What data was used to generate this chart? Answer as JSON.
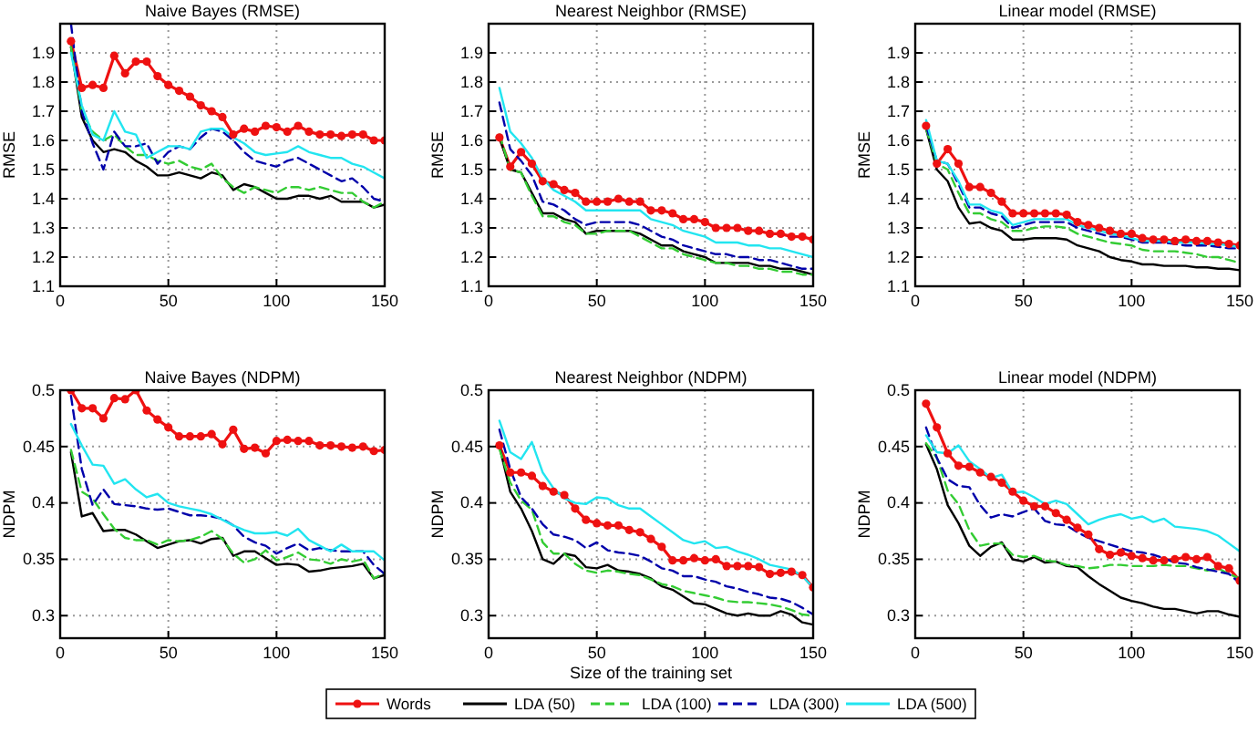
{
  "chart_data": [
    {
      "type": "line",
      "title": "Naive Bayes (RMSE)",
      "ylabel": "RMSE",
      "x": [
        5,
        10,
        15,
        20,
        25,
        30,
        35,
        40,
        45,
        50,
        55,
        60,
        65,
        70,
        75,
        80,
        85,
        90,
        95,
        100,
        105,
        110,
        115,
        120,
        125,
        130,
        135,
        140,
        145,
        150
      ],
      "xlim": [
        0,
        150
      ],
      "xticks": [
        0,
        50,
        100,
        150
      ],
      "ylim": [
        1.1,
        2.0
      ],
      "yticks": [
        1.1,
        1.2,
        1.3,
        1.4,
        1.5,
        1.6,
        1.7,
        1.8,
        1.9
      ],
      "grid": true,
      "series": [
        {
          "color": "#ee1111",
          "line_style": "solid",
          "marker": "circle",
          "values": [
            1.94,
            1.78,
            1.79,
            1.78,
            1.89,
            1.83,
            1.87,
            1.87,
            1.82,
            1.79,
            1.77,
            1.75,
            1.72,
            1.7,
            1.68,
            1.62,
            1.64,
            1.63,
            1.65,
            1.645,
            1.63,
            1.65,
            1.63,
            1.62,
            1.62,
            1.615,
            1.62,
            1.62,
            1.6,
            1.6
          ]
        },
        {
          "color": "#000000",
          "line_style": "solid",
          "marker": "none",
          "values": [
            1.92,
            1.68,
            1.6,
            1.56,
            1.57,
            1.56,
            1.53,
            1.51,
            1.48,
            1.48,
            1.49,
            1.48,
            1.47,
            1.49,
            1.48,
            1.43,
            1.45,
            1.44,
            1.42,
            1.4,
            1.4,
            1.41,
            1.41,
            1.4,
            1.41,
            1.39,
            1.39,
            1.39,
            1.37,
            1.38
          ]
        },
        {
          "color": "#33cc33",
          "line_style": "dashed",
          "marker": "none",
          "values": [
            1.92,
            1.7,
            1.63,
            1.6,
            1.62,
            1.58,
            1.55,
            1.55,
            1.53,
            1.52,
            1.53,
            1.51,
            1.5,
            1.52,
            1.47,
            1.44,
            1.42,
            1.44,
            1.43,
            1.42,
            1.44,
            1.44,
            1.43,
            1.44,
            1.43,
            1.42,
            1.42,
            1.39,
            1.37,
            1.39
          ]
        },
        {
          "color": "#0000aa",
          "line_style": "dashed",
          "marker": "none",
          "values": [
            2.0,
            1.7,
            1.59,
            1.5,
            1.63,
            1.58,
            1.58,
            1.59,
            1.52,
            1.56,
            1.58,
            1.57,
            1.61,
            1.64,
            1.63,
            1.6,
            1.56,
            1.53,
            1.52,
            1.51,
            1.53,
            1.54,
            1.52,
            1.5,
            1.48,
            1.46,
            1.47,
            1.44,
            1.4,
            1.39
          ]
        },
        {
          "color": "#22e5f0",
          "line_style": "solid",
          "marker": "none",
          "values": [
            1.9,
            1.72,
            1.62,
            1.6,
            1.7,
            1.63,
            1.62,
            1.54,
            1.56,
            1.58,
            1.58,
            1.57,
            1.63,
            1.64,
            1.64,
            1.61,
            1.59,
            1.56,
            1.55,
            1.555,
            1.56,
            1.58,
            1.56,
            1.55,
            1.54,
            1.54,
            1.52,
            1.51,
            1.49,
            1.47
          ]
        }
      ]
    },
    {
      "type": "line",
      "title": "Nearest Neighbor (RMSE)",
      "ylabel": "RMSE",
      "x": [
        5,
        10,
        15,
        20,
        25,
        30,
        35,
        40,
        45,
        50,
        55,
        60,
        65,
        70,
        75,
        80,
        85,
        90,
        95,
        100,
        105,
        110,
        115,
        120,
        125,
        130,
        135,
        140,
        145,
        150
      ],
      "xlim": [
        0,
        150
      ],
      "xticks": [
        0,
        50,
        100,
        150
      ],
      "ylim": [
        1.1,
        2.0
      ],
      "yticks": [
        1.1,
        1.2,
        1.3,
        1.4,
        1.5,
        1.6,
        1.7,
        1.8,
        1.9
      ],
      "grid": true,
      "series": [
        {
          "color": "#ee1111",
          "line_style": "solid",
          "marker": "circle",
          "values": [
            1.61,
            1.51,
            1.56,
            1.52,
            1.46,
            1.45,
            1.43,
            1.42,
            1.39,
            1.39,
            1.39,
            1.4,
            1.39,
            1.39,
            1.36,
            1.36,
            1.35,
            1.33,
            1.33,
            1.32,
            1.3,
            1.3,
            1.3,
            1.29,
            1.29,
            1.28,
            1.28,
            1.27,
            1.27,
            1.26
          ]
        },
        {
          "color": "#000000",
          "line_style": "solid",
          "marker": "none",
          "values": [
            1.61,
            1.5,
            1.49,
            1.42,
            1.35,
            1.35,
            1.33,
            1.32,
            1.28,
            1.29,
            1.29,
            1.29,
            1.29,
            1.28,
            1.26,
            1.24,
            1.24,
            1.22,
            1.21,
            1.2,
            1.18,
            1.18,
            1.18,
            1.18,
            1.17,
            1.17,
            1.16,
            1.16,
            1.15,
            1.14
          ]
        },
        {
          "color": "#33cc33",
          "line_style": "dashed",
          "marker": "none",
          "values": [
            1.62,
            1.5,
            1.49,
            1.41,
            1.34,
            1.34,
            1.32,
            1.31,
            1.28,
            1.28,
            1.29,
            1.29,
            1.29,
            1.27,
            1.25,
            1.23,
            1.23,
            1.21,
            1.2,
            1.19,
            1.18,
            1.18,
            1.17,
            1.17,
            1.16,
            1.16,
            1.15,
            1.15,
            1.14,
            1.14
          ]
        },
        {
          "color": "#0000aa",
          "line_style": "dashed",
          "marker": "none",
          "values": [
            1.73,
            1.57,
            1.53,
            1.48,
            1.39,
            1.38,
            1.36,
            1.33,
            1.31,
            1.32,
            1.32,
            1.32,
            1.32,
            1.31,
            1.29,
            1.27,
            1.26,
            1.24,
            1.23,
            1.22,
            1.21,
            1.21,
            1.2,
            1.2,
            1.19,
            1.19,
            1.18,
            1.17,
            1.16,
            1.16
          ]
        },
        {
          "color": "#22e5f0",
          "line_style": "solid",
          "marker": "none",
          "values": [
            1.78,
            1.63,
            1.59,
            1.54,
            1.47,
            1.43,
            1.41,
            1.39,
            1.36,
            1.36,
            1.36,
            1.36,
            1.36,
            1.36,
            1.33,
            1.32,
            1.31,
            1.29,
            1.28,
            1.27,
            1.25,
            1.25,
            1.25,
            1.24,
            1.24,
            1.23,
            1.23,
            1.22,
            1.21,
            1.2
          ]
        }
      ]
    },
    {
      "type": "line",
      "title": "Linear model (RMSE)",
      "ylabel": "RMSE",
      "x": [
        5,
        10,
        15,
        20,
        25,
        30,
        35,
        40,
        45,
        50,
        55,
        60,
        65,
        70,
        75,
        80,
        85,
        90,
        95,
        100,
        105,
        110,
        115,
        120,
        125,
        130,
        135,
        140,
        145,
        150
      ],
      "xlim": [
        0,
        150
      ],
      "xticks": [
        0,
        50,
        100,
        150
      ],
      "ylim": [
        1.1,
        2.0
      ],
      "yticks": [
        1.1,
        1.2,
        1.3,
        1.4,
        1.5,
        1.6,
        1.7,
        1.8,
        1.9
      ],
      "grid": true,
      "series": [
        {
          "color": "#ee1111",
          "line_style": "solid",
          "marker": "circle",
          "values": [
            1.65,
            1.52,
            1.57,
            1.52,
            1.44,
            1.44,
            1.42,
            1.39,
            1.35,
            1.35,
            1.35,
            1.35,
            1.35,
            1.345,
            1.32,
            1.31,
            1.3,
            1.29,
            1.28,
            1.28,
            1.265,
            1.26,
            1.26,
            1.255,
            1.26,
            1.255,
            1.255,
            1.25,
            1.245,
            1.24
          ]
        },
        {
          "color": "#000000",
          "line_style": "solid",
          "marker": "none",
          "values": [
            1.64,
            1.5,
            1.46,
            1.37,
            1.315,
            1.32,
            1.3,
            1.29,
            1.26,
            1.26,
            1.265,
            1.265,
            1.265,
            1.26,
            1.24,
            1.23,
            1.22,
            1.2,
            1.19,
            1.185,
            1.175,
            1.175,
            1.17,
            1.17,
            1.17,
            1.165,
            1.165,
            1.16,
            1.16,
            1.155
          ]
        },
        {
          "color": "#33cc33",
          "line_style": "dashed",
          "marker": "none",
          "values": [
            1.64,
            1.52,
            1.5,
            1.42,
            1.35,
            1.35,
            1.33,
            1.32,
            1.29,
            1.29,
            1.3,
            1.305,
            1.305,
            1.3,
            1.28,
            1.27,
            1.26,
            1.25,
            1.245,
            1.24,
            1.225,
            1.22,
            1.22,
            1.22,
            1.215,
            1.21,
            1.2,
            1.2,
            1.19,
            1.18
          ]
        },
        {
          "color": "#0000aa",
          "line_style": "dashed",
          "marker": "none",
          "values": [
            1.65,
            1.53,
            1.52,
            1.45,
            1.37,
            1.37,
            1.35,
            1.34,
            1.3,
            1.31,
            1.32,
            1.32,
            1.32,
            1.32,
            1.3,
            1.29,
            1.28,
            1.27,
            1.27,
            1.26,
            1.25,
            1.25,
            1.25,
            1.245,
            1.24,
            1.24,
            1.24,
            1.235,
            1.23,
            1.23
          ]
        },
        {
          "color": "#22e5f0",
          "line_style": "solid",
          "marker": "none",
          "values": [
            1.67,
            1.53,
            1.52,
            1.46,
            1.38,
            1.38,
            1.36,
            1.35,
            1.31,
            1.32,
            1.33,
            1.33,
            1.33,
            1.33,
            1.31,
            1.3,
            1.29,
            1.28,
            1.275,
            1.265,
            1.255,
            1.255,
            1.255,
            1.25,
            1.25,
            1.25,
            1.245,
            1.245,
            1.24,
            1.235
          ]
        }
      ]
    },
    {
      "type": "line",
      "title": "Naive Bayes (NDPM)",
      "ylabel": "NDPM",
      "x": [
        5,
        10,
        15,
        20,
        25,
        30,
        35,
        40,
        45,
        50,
        55,
        60,
        65,
        70,
        75,
        80,
        85,
        90,
        95,
        100,
        105,
        110,
        115,
        120,
        125,
        130,
        135,
        140,
        145,
        150
      ],
      "xlim": [
        0,
        150
      ],
      "xticks": [
        0,
        50,
        100,
        150
      ],
      "ylim": [
        0.28,
        0.5
      ],
      "yticks": [
        0.3,
        0.35,
        0.4,
        0.45,
        0.5
      ],
      "grid": true,
      "series": [
        {
          "color": "#ee1111",
          "line_style": "solid",
          "marker": "circle",
          "values": [
            0.5,
            0.484,
            0.484,
            0.475,
            0.493,
            0.492,
            0.5,
            0.482,
            0.474,
            0.467,
            0.459,
            0.459,
            0.459,
            0.461,
            0.452,
            0.465,
            0.448,
            0.449,
            0.444,
            0.455,
            0.456,
            0.455,
            0.455,
            0.451,
            0.451,
            0.45,
            0.449,
            0.45,
            0.446,
            0.447
          ]
        },
        {
          "color": "#000000",
          "line_style": "solid",
          "marker": "none",
          "values": [
            0.445,
            0.388,
            0.391,
            0.375,
            0.376,
            0.376,
            0.372,
            0.366,
            0.36,
            0.363,
            0.366,
            0.367,
            0.364,
            0.368,
            0.369,
            0.353,
            0.357,
            0.357,
            0.351,
            0.345,
            0.346,
            0.345,
            0.339,
            0.34,
            0.342,
            0.343,
            0.344,
            0.346,
            0.333,
            0.336
          ]
        },
        {
          "color": "#33cc33",
          "line_style": "dashed",
          "marker": "none",
          "values": [
            0.447,
            0.41,
            0.404,
            0.39,
            0.377,
            0.369,
            0.367,
            0.367,
            0.363,
            0.367,
            0.366,
            0.367,
            0.37,
            0.375,
            0.368,
            0.355,
            0.347,
            0.35,
            0.358,
            0.349,
            0.352,
            0.356,
            0.35,
            0.349,
            0.346,
            0.35,
            0.348,
            0.35,
            0.333,
            0.338
          ]
        },
        {
          "color": "#0000aa",
          "line_style": "dashed",
          "marker": "none",
          "values": [
            0.495,
            0.43,
            0.398,
            0.412,
            0.399,
            0.398,
            0.397,
            0.395,
            0.394,
            0.395,
            0.392,
            0.389,
            0.389,
            0.388,
            0.386,
            0.38,
            0.37,
            0.365,
            0.362,
            0.355,
            0.36,
            0.364,
            0.358,
            0.36,
            0.358,
            0.357,
            0.357,
            0.357,
            0.345,
            0.337
          ]
        },
        {
          "color": "#22e5f0",
          "line_style": "solid",
          "marker": "none",
          "values": [
            0.47,
            0.451,
            0.434,
            0.433,
            0.417,
            0.421,
            0.412,
            0.405,
            0.408,
            0.4,
            0.397,
            0.395,
            0.393,
            0.39,
            0.385,
            0.38,
            0.376,
            0.373,
            0.373,
            0.374,
            0.371,
            0.377,
            0.367,
            0.362,
            0.357,
            0.363,
            0.357,
            0.357,
            0.357,
            0.349
          ]
        }
      ]
    },
    {
      "type": "line",
      "title": "Nearest Neighbor (NDPM)",
      "ylabel": "NDPM",
      "xlabel": "Size of the training set",
      "legend": "bottom",
      "x": [
        5,
        10,
        15,
        20,
        25,
        30,
        35,
        40,
        45,
        50,
        55,
        60,
        65,
        70,
        75,
        80,
        85,
        90,
        95,
        100,
        105,
        110,
        115,
        120,
        125,
        130,
        135,
        140,
        145,
        150
      ],
      "xlim": [
        0,
        150
      ],
      "xticks": [
        0,
        50,
        100,
        150
      ],
      "ylim": [
        0.28,
        0.5
      ],
      "yticks": [
        0.3,
        0.35,
        0.4,
        0.45,
        0.5
      ],
      "grid": true,
      "series": [
        {
          "name": "Words",
          "color": "#ee1111",
          "line_style": "solid",
          "marker": "circle",
          "values": [
            0.451,
            0.427,
            0.427,
            0.424,
            0.415,
            0.41,
            0.407,
            0.395,
            0.385,
            0.382,
            0.38,
            0.38,
            0.376,
            0.374,
            0.368,
            0.361,
            0.349,
            0.349,
            0.351,
            0.349,
            0.35,
            0.344,
            0.344,
            0.344,
            0.343,
            0.337,
            0.338,
            0.339,
            0.336,
            0.325
          ]
        },
        {
          "name": "LDA (50)",
          "color": "#000000",
          "line_style": "solid",
          "marker": "none",
          "values": [
            0.45,
            0.41,
            0.395,
            0.375,
            0.35,
            0.346,
            0.355,
            0.353,
            0.343,
            0.342,
            0.345,
            0.34,
            0.339,
            0.337,
            0.333,
            0.326,
            0.323,
            0.317,
            0.311,
            0.31,
            0.306,
            0.302,
            0.3,
            0.302,
            0.3,
            0.3,
            0.304,
            0.301,
            0.294,
            0.292
          ]
        },
        {
          "name": "LDA (100)",
          "color": "#33cc33",
          "line_style": "dashed",
          "marker": "none",
          "values": [
            0.448,
            0.418,
            0.402,
            0.394,
            0.365,
            0.355,
            0.355,
            0.346,
            0.34,
            0.338,
            0.34,
            0.339,
            0.337,
            0.336,
            0.332,
            0.328,
            0.326,
            0.322,
            0.32,
            0.318,
            0.316,
            0.313,
            0.312,
            0.312,
            0.311,
            0.31,
            0.308,
            0.305,
            0.301,
            0.3
          ]
        },
        {
          "name": "LDA (300)",
          "color": "#0000aa",
          "line_style": "dashed",
          "marker": "none",
          "values": [
            0.465,
            0.43,
            0.405,
            0.395,
            0.381,
            0.372,
            0.37,
            0.367,
            0.36,
            0.365,
            0.358,
            0.356,
            0.355,
            0.353,
            0.348,
            0.342,
            0.34,
            0.335,
            0.335,
            0.332,
            0.33,
            0.326,
            0.324,
            0.321,
            0.319,
            0.316,
            0.315,
            0.312,
            0.307,
            0.301
          ]
        },
        {
          "name": "LDA (500)",
          "color": "#22e5f0",
          "line_style": "solid",
          "marker": "none",
          "values": [
            0.473,
            0.445,
            0.439,
            0.454,
            0.427,
            0.413,
            0.404,
            0.4,
            0.399,
            0.405,
            0.404,
            0.398,
            0.395,
            0.395,
            0.388,
            0.381,
            0.374,
            0.367,
            0.364,
            0.366,
            0.36,
            0.361,
            0.357,
            0.354,
            0.35,
            0.345,
            0.343,
            0.341,
            0.335,
            0.325
          ]
        }
      ]
    },
    {
      "type": "line",
      "title": "Linear model (NDPM)",
      "ylabel": "NDPM",
      "x": [
        5,
        10,
        15,
        20,
        25,
        30,
        35,
        40,
        45,
        50,
        55,
        60,
        65,
        70,
        75,
        80,
        85,
        90,
        95,
        100,
        105,
        110,
        115,
        120,
        125,
        130,
        135,
        140,
        145,
        150
      ],
      "xlim": [
        0,
        150
      ],
      "xticks": [
        0,
        50,
        100,
        150
      ],
      "ylim": [
        0.28,
        0.5
      ],
      "yticks": [
        0.3,
        0.35,
        0.4,
        0.45,
        0.5
      ],
      "grid": true,
      "series": [
        {
          "color": "#ee1111",
          "line_style": "solid",
          "marker": "circle",
          "values": [
            0.488,
            0.467,
            0.444,
            0.433,
            0.432,
            0.427,
            0.423,
            0.418,
            0.41,
            0.402,
            0.397,
            0.397,
            0.391,
            0.385,
            0.378,
            0.372,
            0.359,
            0.354,
            0.356,
            0.353,
            0.351,
            0.349,
            0.349,
            0.35,
            0.352,
            0.35,
            0.352,
            0.344,
            0.342,
            0.331
          ]
        },
        {
          "color": "#000000",
          "line_style": "solid",
          "marker": "none",
          "values": [
            0.452,
            0.43,
            0.398,
            0.382,
            0.362,
            0.353,
            0.361,
            0.365,
            0.35,
            0.348,
            0.352,
            0.347,
            0.348,
            0.344,
            0.343,
            0.335,
            0.328,
            0.322,
            0.316,
            0.313,
            0.311,
            0.308,
            0.306,
            0.306,
            0.304,
            0.302,
            0.304,
            0.304,
            0.301,
            0.299
          ]
        },
        {
          "color": "#33cc33",
          "line_style": "dashed",
          "marker": "none",
          "values": [
            0.453,
            0.44,
            0.411,
            0.399,
            0.376,
            0.362,
            0.364,
            0.364,
            0.354,
            0.352,
            0.353,
            0.349,
            0.348,
            0.345,
            0.344,
            0.342,
            0.343,
            0.345,
            0.345,
            0.344,
            0.344,
            0.344,
            0.345,
            0.344,
            0.344,
            0.342,
            0.34,
            0.342,
            0.337,
            0.333
          ]
        },
        {
          "color": "#0000aa",
          "line_style": "dashed",
          "marker": "none",
          "values": [
            0.467,
            0.44,
            0.421,
            0.415,
            0.414,
            0.398,
            0.387,
            0.39,
            0.388,
            0.392,
            0.395,
            0.384,
            0.381,
            0.38,
            0.374,
            0.369,
            0.366,
            0.363,
            0.36,
            0.357,
            0.356,
            0.354,
            0.351,
            0.347,
            0.346,
            0.343,
            0.341,
            0.339,
            0.337,
            0.329
          ]
        },
        {
          "color": "#22e5f0",
          "line_style": "solid",
          "marker": "none",
          "values": [
            0.46,
            0.445,
            0.444,
            0.451,
            0.437,
            0.43,
            0.422,
            0.425,
            0.409,
            0.41,
            0.405,
            0.399,
            0.402,
            0.399,
            0.39,
            0.381,
            0.385,
            0.388,
            0.39,
            0.386,
            0.388,
            0.383,
            0.386,
            0.379,
            0.378,
            0.377,
            0.375,
            0.371,
            0.364,
            0.357
          ]
        }
      ]
    }
  ]
}
